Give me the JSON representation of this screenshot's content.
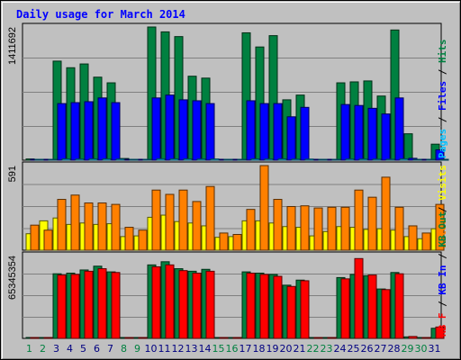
{
  "chart_data": [
    {
      "type": "bar",
      "title": "Daily usage for March 2014",
      "categories": [
        "1",
        "2",
        "3",
        "4",
        "5",
        "6",
        "7",
        "8",
        "9",
        "10",
        "11",
        "12",
        "13",
        "14",
        "15",
        "16",
        "17",
        "18",
        "19",
        "20",
        "21",
        "22",
        "23",
        "24",
        "25",
        "26",
        "27",
        "28",
        "29",
        "30",
        "31"
      ],
      "weekend_days": [
        1,
        2,
        8,
        9,
        15,
        16,
        22,
        23,
        29,
        30
      ],
      "ylabel_max": "1411692",
      "legend": [
        {
          "text": "Pages",
          "color": "#00c0ff"
        },
        {
          "text": " / ",
          "color": "#000000"
        },
        {
          "text": "Files",
          "color": "#0000ff"
        },
        {
          "text": " / ",
          "color": "#000000"
        },
        {
          "text": "Hits",
          "color": "#008040"
        }
      ],
      "ylim": [
        0,
        1411692
      ],
      "series": [
        {
          "name": "Hits",
          "color": "#008040",
          "values": [
            13000,
            4000,
            1050000,
            980000,
            1020000,
            880000,
            820000,
            18000,
            4000,
            1411692,
            1360000,
            1310000,
            890000,
            870000,
            4000,
            4000,
            1350000,
            1200000,
            1320000,
            640000,
            690000,
            4000,
            4000,
            820000,
            830000,
            840000,
            680000,
            1380000,
            280000,
            4000,
            170000
          ]
        },
        {
          "name": "Files",
          "color": "#0000ff",
          "values": [
            6000,
            2000,
            600000,
            610000,
            620000,
            660000,
            610000,
            9000,
            2000,
            660000,
            690000,
            640000,
            630000,
            600000,
            2000,
            2000,
            630000,
            600000,
            600000,
            460000,
            560000,
            2000,
            2000,
            590000,
            580000,
            550000,
            490000,
            660000,
            20000,
            2000,
            110000
          ]
        },
        {
          "name": "Pages",
          "color": "#00c0ff",
          "values": [
            1500,
            400,
            14000,
            13000,
            14000,
            14000,
            13000,
            1800,
            500,
            15000,
            14000,
            14000,
            13000,
            13000,
            500,
            500,
            14000,
            13000,
            14000,
            12000,
            12000,
            500,
            500,
            13000,
            13000,
            12000,
            11000,
            14000,
            2000,
            500,
            2000
          ]
        }
      ]
    },
    {
      "type": "bar",
      "ylabel_max": "591",
      "legend": [
        {
          "text": "Sites",
          "color": "#ff8000"
        },
        {
          "text": " / ",
          "color": "#000000"
        },
        {
          "text": "Visits",
          "color": "#ffff00"
        }
      ],
      "ylim": [
        0,
        591
      ],
      "series": [
        {
          "name": "Visits",
          "color": "#ffff00",
          "values": [
            115,
            205,
            225,
            180,
            190,
            180,
            185,
            95,
            100,
            230,
            245,
            200,
            190,
            170,
            90,
            95,
            205,
            205,
            190,
            165,
            160,
            100,
            130,
            165,
            160,
            145,
            150,
            140,
            95,
            80,
            150
          ]
        },
        {
          "name": "Sites",
          "color": "#ff8000",
          "values": [
            175,
            140,
            355,
            385,
            330,
            330,
            320,
            160,
            140,
            420,
            390,
            420,
            340,
            445,
            120,
            110,
            285,
            591,
            355,
            305,
            310,
            295,
            300,
            300,
            420,
            370,
            510,
            300,
            170,
            120,
            320
          ]
        }
      ]
    },
    {
      "type": "bar",
      "ylabel_max": "65345354",
      "legend": [
        {
          "text": "KB F",
          "color": "#ff0000"
        },
        {
          "text": " / ",
          "color": "#000000"
        },
        {
          "text": "KB In",
          "color": "#0000ff"
        },
        {
          "text": " / ",
          "color": "#000000"
        },
        {
          "text": "KB Out",
          "color": "#008040"
        }
      ],
      "ylim": [
        0,
        65345354
      ],
      "series": [
        {
          "name": "KB Out",
          "color": "#008040",
          "values": [
            200000,
            200000,
            51000000,
            51500000,
            54000000,
            57000000,
            52500000,
            200000,
            200000,
            58000000,
            60500000,
            55000000,
            53000000,
            54500000,
            200000,
            200000,
            52500000,
            51500000,
            50500000,
            42000000,
            46000000,
            200000,
            200000,
            48000000,
            50500000,
            49500000,
            39000000,
            52000000,
            1200000,
            200000,
            8000000
          ]
        },
        {
          "name": "KB F",
          "color": "#ff0000",
          "values": [
            200000,
            200000,
            50000000,
            50500000,
            53000000,
            55000000,
            52000000,
            200000,
            200000,
            56500000,
            58000000,
            53500000,
            51500000,
            53000000,
            200000,
            200000,
            51500000,
            50500000,
            49000000,
            41000000,
            45500000,
            200000,
            200000,
            47000000,
            63000000,
            50000000,
            38500000,
            51000000,
            1500000,
            200000,
            9000000
          ]
        }
      ]
    }
  ]
}
